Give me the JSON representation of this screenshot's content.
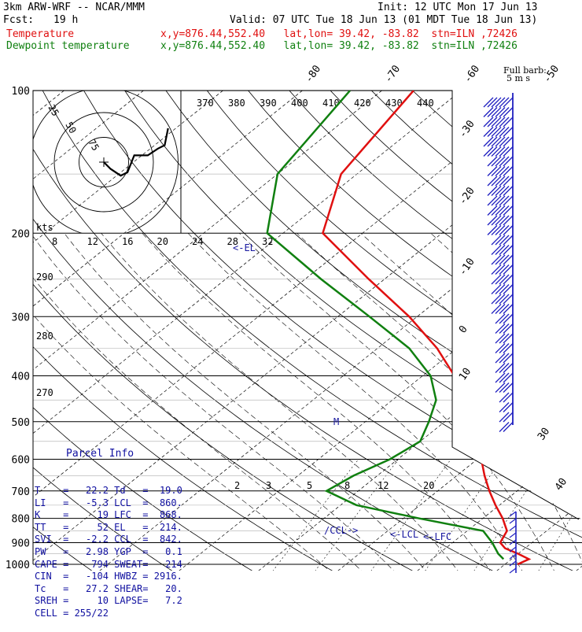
{
  "header": {
    "model": "3km ARW-WRF -- NCAR/MMM",
    "init": "Init: 12 UTC Mon 17 Jun 13",
    "fcst_label": "Fcst:",
    "fcst_value": "19 h",
    "valid": "Valid: 07 UTC Tue 18 Jun 13 (01 MDT Tue 18 Jun 13)",
    "temp_label": "Temperature",
    "temp_info": "x,y=876.44,552.40   lat,lon= 39.42, -83.82  stn=ILN ,72426",
    "dew_label": "Dewpoint temperature",
    "dew_info": "x,y=876.44,552.40   lat,lon= 39.42, -83.82  stn=ILN ,72426",
    "barb_legend_1": "Full barb:",
    "barb_legend_2": "5 m s"
  },
  "colors": {
    "temperature": "#e01010",
    "dewpoint": "#108010",
    "hodograph": "#000000",
    "barbs": "#2020c0",
    "parcel_text": "#1010a0"
  },
  "chart_data": {
    "type": "line",
    "ylabel": "",
    "xlabel": "",
    "pressure_ticks": [
      100,
      200,
      300,
      400,
      500,
      600,
      700,
      800,
      900,
      1000
    ],
    "pressure_labels": [
      "100",
      "200",
      "300",
      "400",
      "500",
      "600",
      "700",
      "800",
      "900",
      "1000"
    ],
    "isotherm_labels": [
      "-80",
      "-70",
      "-60",
      "-50",
      "-40",
      "-30",
      "-20",
      "-10",
      "0",
      "10",
      "20",
      "30",
      "40"
    ],
    "theta_labels": [
      "370",
      "380",
      "390",
      "400",
      "410",
      "420",
      "430",
      "440"
    ],
    "dry_adiabat_labels": [
      "290",
      "280",
      "270"
    ],
    "mixing_ratio_labels": [
      "2",
      "3",
      "5",
      "8",
      "12",
      "20"
    ],
    "hodo_speed_labels": [
      "75",
      "50",
      "25"
    ],
    "hodo_axis_label": "kts",
    "hodo_scale_labels": [
      "8",
      "12",
      "16",
      "20",
      "24",
      "28",
      "32"
    ],
    "markers": [
      "<-EL",
      "/CCL->",
      "<-LCL",
      "<-LFC",
      "M"
    ],
    "series": [
      {
        "name": "Temperature",
        "points": [
          [
            1000,
            21.6
          ],
          [
            975,
            22.2
          ],
          [
            950,
            20
          ],
          [
            925,
            17.5
          ],
          [
            900,
            16
          ],
          [
            850,
            15
          ],
          [
            800,
            12.5
          ],
          [
            750,
            9.5
          ],
          [
            700,
            6.5
          ],
          [
            650,
            3.5
          ],
          [
            600,
            0.5
          ],
          [
            550,
            -3
          ],
          [
            500,
            -6.5
          ],
          [
            450,
            -11
          ],
          [
            400,
            -16
          ],
          [
            350,
            -22.5
          ],
          [
            300,
            -31
          ],
          [
            250,
            -42
          ],
          [
            200,
            -55
          ],
          [
            150,
            -62
          ],
          [
            100,
            -66
          ]
        ]
      },
      {
        "name": "Dewpoint temperature",
        "points": [
          [
            975,
            19
          ],
          [
            950,
            17.5
          ],
          [
            900,
            15
          ],
          [
            850,
            12
          ],
          [
            800,
            2
          ],
          [
            750,
            -8
          ],
          [
            700,
            -14
          ],
          [
            650,
            -13
          ],
          [
            600,
            -11
          ],
          [
            550,
            -10
          ],
          [
            500,
            -12
          ],
          [
            450,
            -14.5
          ],
          [
            400,
            -19
          ],
          [
            350,
            -26
          ],
          [
            300,
            -36
          ],
          [
            250,
            -48
          ],
          [
            200,
            -62
          ],
          [
            150,
            -70
          ],
          [
            100,
            -74
          ]
        ]
      }
    ],
    "hodograph": [
      [
        0,
        0
      ],
      [
        2,
        -2
      ],
      [
        5,
        -4
      ],
      [
        7,
        -3
      ],
      [
        9,
        2
      ],
      [
        13,
        2
      ],
      [
        16,
        4
      ],
      [
        18,
        5
      ],
      [
        19,
        10
      ]
    ]
  },
  "parcel_info": {
    "title": "Parcel Info",
    "rows": [
      {
        "k1": "T",
        "v1": "22.2",
        "k2": "Td",
        "v2": "19.0"
      },
      {
        "k1": "LI",
        "v1": "-5.3",
        "k2": "LCL",
        "v2": "860."
      },
      {
        "k1": "K",
        "v1": "19",
        "k2": "LFC",
        "v2": "868."
      },
      {
        "k1": "TT",
        "v1": "52",
        "k2": "EL",
        "v2": "214."
      },
      {
        "k1": "SVI",
        "v1": "-2.2",
        "k2": "CCL",
        "v2": "842."
      },
      {
        "k1": "PW",
        "v1": "2.98",
        "k2": "YGP",
        "v2": "0.1"
      },
      {
        "k1": "CAPE",
        "v1": "794",
        "k2": "SWEAT",
        "v2": "214"
      },
      {
        "k1": "CIN",
        "v1": "-104",
        "k2": "HWBZ",
        "v2": "2916."
      },
      {
        "k1": "Tc",
        "v1": "27.2",
        "k2": "SHEAR",
        "v2": "20."
      },
      {
        "k1": "SREH",
        "v1": "10",
        "k2": "LAPSE",
        "v2": "7.2"
      },
      {
        "k1": "CELL",
        "v1": "255/22",
        "k2": "",
        "v2": ""
      }
    ]
  }
}
